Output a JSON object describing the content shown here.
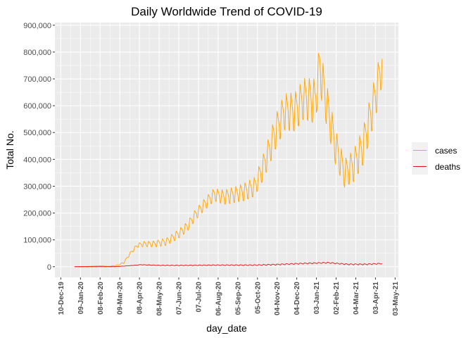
{
  "chart_data": {
    "type": "line",
    "title": "Daily Worldwide Trend of COVID-19",
    "xlabel": "day_date",
    "ylabel": "Total No.",
    "x_range": [
      "2019-12-01",
      "2021-05-08"
    ],
    "ylim": [
      -40000,
      910000
    ],
    "x_ticks": [
      "2019-12-10",
      "2020-01-09",
      "2020-02-08",
      "2020-03-09",
      "2020-04-08",
      "2020-05-08",
      "2020-06-07",
      "2020-07-07",
      "2020-08-06",
      "2020-09-05",
      "2020-10-05",
      "2020-11-04",
      "2020-12-04",
      "2021-01-03",
      "2021-02-02",
      "2021-03-04",
      "2021-04-03",
      "2021-05-03"
    ],
    "x_tick_labels": [
      "10-Dec-19",
      "09-Jan-20",
      "08-Feb-20",
      "09-Mar-20",
      "08-Apr-20",
      "08-May-20",
      "07-Jun-20",
      "07-Jul-20",
      "06-Aug-20",
      "05-Sep-20",
      "05-Oct-20",
      "04-Nov-20",
      "04-Dec-20",
      "03-Jan-21",
      "02-Feb-21",
      "04-Mar-21",
      "03-Apr-21",
      "03-May-21"
    ],
    "y_ticks": [
      0,
      100000,
      200000,
      300000,
      400000,
      500000,
      600000,
      700000,
      800000,
      900000
    ],
    "y_tick_labels": [
      "0",
      "100,000",
      "200,000",
      "300,000",
      "400,000",
      "500,000",
      "600,000",
      "700,000",
      "800,000",
      "900,000"
    ],
    "grid": true,
    "legend_position": "right",
    "series": [
      {
        "name": "cases",
        "color": "#FFA500",
        "points": [
          [
            "2019-12-31",
            0
          ],
          [
            "2020-01-20",
            1000
          ],
          [
            "2020-02-01",
            2500
          ],
          [
            "2020-02-10",
            3500
          ],
          [
            "2020-02-20",
            1000
          ],
          [
            "2020-03-05",
            5000
          ],
          [
            "2020-03-15",
            15000
          ],
          [
            "2020-03-25",
            50000
          ],
          [
            "2020-04-05",
            80000
          ],
          [
            "2020-04-15",
            85000
          ],
          [
            "2020-05-01",
            85000
          ],
          [
            "2020-05-20",
            95000
          ],
          [
            "2020-06-05",
            120000
          ],
          [
            "2020-06-20",
            150000
          ],
          [
            "2020-07-01",
            190000
          ],
          [
            "2020-07-15",
            230000
          ],
          [
            "2020-07-31",
            270000
          ],
          [
            "2020-08-15",
            260000
          ],
          [
            "2020-09-01",
            270000
          ],
          [
            "2020-09-15",
            280000
          ],
          [
            "2020-10-01",
            300000
          ],
          [
            "2020-10-15",
            380000
          ],
          [
            "2020-11-01",
            500000
          ],
          [
            "2020-11-15",
            580000
          ],
          [
            "2020-12-01",
            580000
          ],
          [
            "2020-12-15",
            630000
          ],
          [
            "2021-01-01",
            620000
          ],
          [
            "2021-01-08",
            750000
          ],
          [
            "2021-01-15",
            650000
          ],
          [
            "2021-02-01",
            450000
          ],
          [
            "2021-02-15",
            350000
          ],
          [
            "2021-03-01",
            380000
          ],
          [
            "2021-03-15",
            450000
          ],
          [
            "2021-03-25",
            550000
          ],
          [
            "2021-04-05",
            660000
          ],
          [
            "2021-04-13",
            760000
          ]
        ],
        "weekly_swing": [
          [
            "2019-12-31",
            0
          ],
          [
            "2020-02-20",
            0
          ],
          [
            "2020-03-15",
            4000
          ],
          [
            "2020-04-05",
            10000
          ],
          [
            "2020-06-01",
            20000
          ],
          [
            "2020-08-01",
            30000
          ],
          [
            "2020-10-01",
            45000
          ],
          [
            "2020-11-01",
            80000
          ],
          [
            "2020-12-15",
            95000
          ],
          [
            "2021-01-08",
            110000
          ],
          [
            "2021-02-15",
            65000
          ],
          [
            "2021-04-01",
            100000
          ],
          [
            "2021-04-13",
            100000
          ]
        ]
      },
      {
        "name": "deaths",
        "color": "#E01010",
        "points": [
          [
            "2019-12-31",
            0
          ],
          [
            "2020-03-01",
            100
          ],
          [
            "2020-03-20",
            3000
          ],
          [
            "2020-04-10",
            7500
          ],
          [
            "2020-05-10",
            5000
          ],
          [
            "2020-06-15",
            5000
          ],
          [
            "2020-08-01",
            6000
          ],
          [
            "2020-10-01",
            6000
          ],
          [
            "2020-11-01",
            8000
          ],
          [
            "2020-12-01",
            11000
          ],
          [
            "2021-01-20",
            15000
          ],
          [
            "2021-02-20",
            9000
          ],
          [
            "2021-03-20",
            9000
          ],
          [
            "2021-04-13",
            12000
          ]
        ],
        "weekly_swing": [
          [
            "2019-12-31",
            0
          ],
          [
            "2020-03-20",
            500
          ],
          [
            "2020-06-01",
            1500
          ],
          [
            "2020-12-01",
            2500
          ],
          [
            "2021-04-13",
            2500
          ]
        ]
      }
    ]
  }
}
